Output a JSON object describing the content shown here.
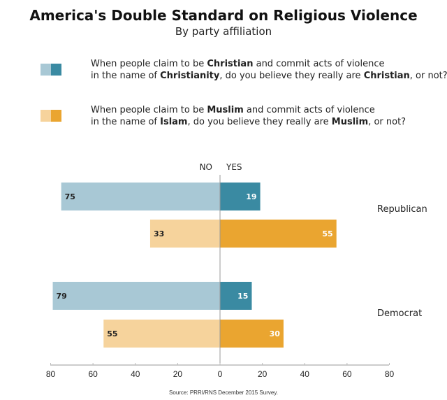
{
  "title": "America's Double Standard on Religious Violence",
  "subtitle": "By party affiliation",
  "legend": [
    {
      "line1": [
        "When people claim to be ",
        "Christian",
        " and commit acts of violence"
      ],
      "line2": [
        "in the name of ",
        "Christianity",
        ", do you believe they really are ",
        "Christian",
        ", or not?"
      ],
      "colors": {
        "no": "#a8c8d5",
        "yes": "#3a8aa2"
      }
    },
    {
      "line1": [
        "When people claim to be ",
        "Muslim",
        " and commit acts of violence"
      ],
      "line2": [
        "in the name of ",
        "Islam",
        ", do you believe they really are ",
        "Muslim",
        ", or not?"
      ],
      "colors": {
        "no": "#f6d39c",
        "yes": "#eaa530"
      }
    }
  ],
  "source": "Source: PRRI/RNS December 2015 Survey.",
  "chart_data": {
    "type": "bar",
    "orientation": "horizontal-diverging",
    "column_labels": {
      "no": "NO",
      "yes": "YES"
    },
    "groups": [
      {
        "name": "Republican",
        "bars": [
          {
            "question": "Christian",
            "no": 75,
            "yes": 19
          },
          {
            "question": "Muslim",
            "no": 33,
            "yes": 55
          }
        ]
      },
      {
        "name": "Democrat",
        "bars": [
          {
            "question": "Christian",
            "no": 79,
            "yes": 15
          },
          {
            "question": "Muslim",
            "no": 55,
            "yes": 30
          }
        ]
      }
    ],
    "xlim": [
      -80,
      80
    ],
    "xticks": [
      "80",
      "60",
      "40",
      "20",
      "0",
      "20",
      "40",
      "60",
      "80"
    ],
    "grid": false,
    "legend": "top"
  }
}
